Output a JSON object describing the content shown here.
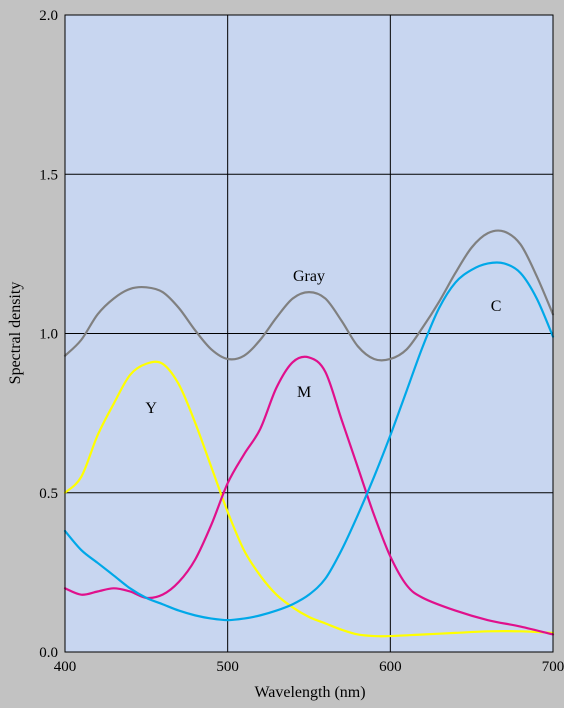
{
  "chart_data": {
    "type": "line",
    "xlabel": "Wavelength (nm)",
    "ylabel": "Spectral density",
    "xlim": [
      400,
      700
    ],
    "ylim": [
      0,
      2
    ],
    "xticks": [
      400,
      500,
      600,
      700
    ],
    "xtick_labels": [
      "400",
      "500",
      "600",
      "700"
    ],
    "yticks": [
      0,
      0.5,
      1,
      1.5,
      2
    ],
    "ytick_labels": [
      "0.0",
      "0.5",
      "1.0",
      "1.5",
      "2.0"
    ],
    "grid": true,
    "plot_background": "#c8d6f0",
    "page_background": "#c2c2c2",
    "series": [
      {
        "name": "Gray",
        "color": "#808080",
        "points": [
          [
            400,
            0.93
          ],
          [
            410,
            0.98
          ],
          [
            420,
            1.06
          ],
          [
            430,
            1.11
          ],
          [
            440,
            1.14
          ],
          [
            450,
            1.145
          ],
          [
            460,
            1.13
          ],
          [
            470,
            1.08
          ],
          [
            480,
            1.01
          ],
          [
            490,
            0.95
          ],
          [
            500,
            0.92
          ],
          [
            510,
            0.93
          ],
          [
            520,
            0.98
          ],
          [
            530,
            1.05
          ],
          [
            540,
            1.11
          ],
          [
            550,
            1.13
          ],
          [
            560,
            1.11
          ],
          [
            570,
            1.04
          ],
          [
            580,
            0.96
          ],
          [
            590,
            0.92
          ],
          [
            600,
            0.92
          ],
          [
            610,
            0.95
          ],
          [
            620,
            1.02
          ],
          [
            630,
            1.1
          ],
          [
            640,
            1.19
          ],
          [
            650,
            1.27
          ],
          [
            660,
            1.315
          ],
          [
            670,
            1.32
          ],
          [
            680,
            1.28
          ],
          [
            690,
            1.18
          ],
          [
            700,
            1.06
          ]
        ]
      },
      {
        "name": "Y",
        "color": "#ffff00",
        "points": [
          [
            400,
            0.5
          ],
          [
            410,
            0.55
          ],
          [
            420,
            0.68
          ],
          [
            430,
            0.78
          ],
          [
            440,
            0.87
          ],
          [
            450,
            0.905
          ],
          [
            460,
            0.905
          ],
          [
            470,
            0.84
          ],
          [
            480,
            0.72
          ],
          [
            490,
            0.58
          ],
          [
            500,
            0.44
          ],
          [
            510,
            0.32
          ],
          [
            520,
            0.24
          ],
          [
            530,
            0.18
          ],
          [
            540,
            0.14
          ],
          [
            550,
            0.11
          ],
          [
            560,
            0.09
          ],
          [
            570,
            0.07
          ],
          [
            580,
            0.055
          ],
          [
            590,
            0.05
          ],
          [
            600,
            0.05
          ],
          [
            620,
            0.055
          ],
          [
            640,
            0.06
          ],
          [
            660,
            0.065
          ],
          [
            680,
            0.065
          ],
          [
            700,
            0.06
          ]
        ]
      },
      {
        "name": "M",
        "color": "#e0108c",
        "points": [
          [
            400,
            0.2
          ],
          [
            410,
            0.18
          ],
          [
            420,
            0.19
          ],
          [
            430,
            0.2
          ],
          [
            440,
            0.19
          ],
          [
            450,
            0.17
          ],
          [
            460,
            0.18
          ],
          [
            470,
            0.22
          ],
          [
            480,
            0.29
          ],
          [
            490,
            0.4
          ],
          [
            500,
            0.53
          ],
          [
            510,
            0.62
          ],
          [
            520,
            0.7
          ],
          [
            530,
            0.83
          ],
          [
            540,
            0.91
          ],
          [
            550,
            0.925
          ],
          [
            560,
            0.88
          ],
          [
            570,
            0.73
          ],
          [
            580,
            0.58
          ],
          [
            590,
            0.43
          ],
          [
            600,
            0.3
          ],
          [
            610,
            0.21
          ],
          [
            620,
            0.17
          ],
          [
            640,
            0.13
          ],
          [
            660,
            0.1
          ],
          [
            680,
            0.08
          ],
          [
            700,
            0.055
          ]
        ]
      },
      {
        "name": "C",
        "color": "#00a8e8",
        "points": [
          [
            400,
            0.38
          ],
          [
            410,
            0.32
          ],
          [
            420,
            0.28
          ],
          [
            430,
            0.24
          ],
          [
            440,
            0.2
          ],
          [
            450,
            0.17
          ],
          [
            460,
            0.15
          ],
          [
            470,
            0.13
          ],
          [
            480,
            0.115
          ],
          [
            490,
            0.105
          ],
          [
            500,
            0.1
          ],
          [
            510,
            0.105
          ],
          [
            520,
            0.115
          ],
          [
            530,
            0.13
          ],
          [
            540,
            0.15
          ],
          [
            550,
            0.18
          ],
          [
            560,
            0.23
          ],
          [
            570,
            0.32
          ],
          [
            580,
            0.43
          ],
          [
            590,
            0.55
          ],
          [
            600,
            0.68
          ],
          [
            610,
            0.82
          ],
          [
            620,
            0.96
          ],
          [
            630,
            1.08
          ],
          [
            640,
            1.16
          ],
          [
            650,
            1.2
          ],
          [
            660,
            1.22
          ],
          [
            670,
            1.22
          ],
          [
            680,
            1.19
          ],
          [
            690,
            1.11
          ],
          [
            700,
            0.99
          ]
        ]
      }
    ],
    "annotations": [
      {
        "text": "Gray",
        "x": 550,
        "y": 1.165
      },
      {
        "text": "C",
        "x": 665,
        "y": 1.07
      },
      {
        "text": "M",
        "x": 547,
        "y": 0.8
      },
      {
        "text": "Y",
        "x": 453,
        "y": 0.75
      }
    ]
  }
}
